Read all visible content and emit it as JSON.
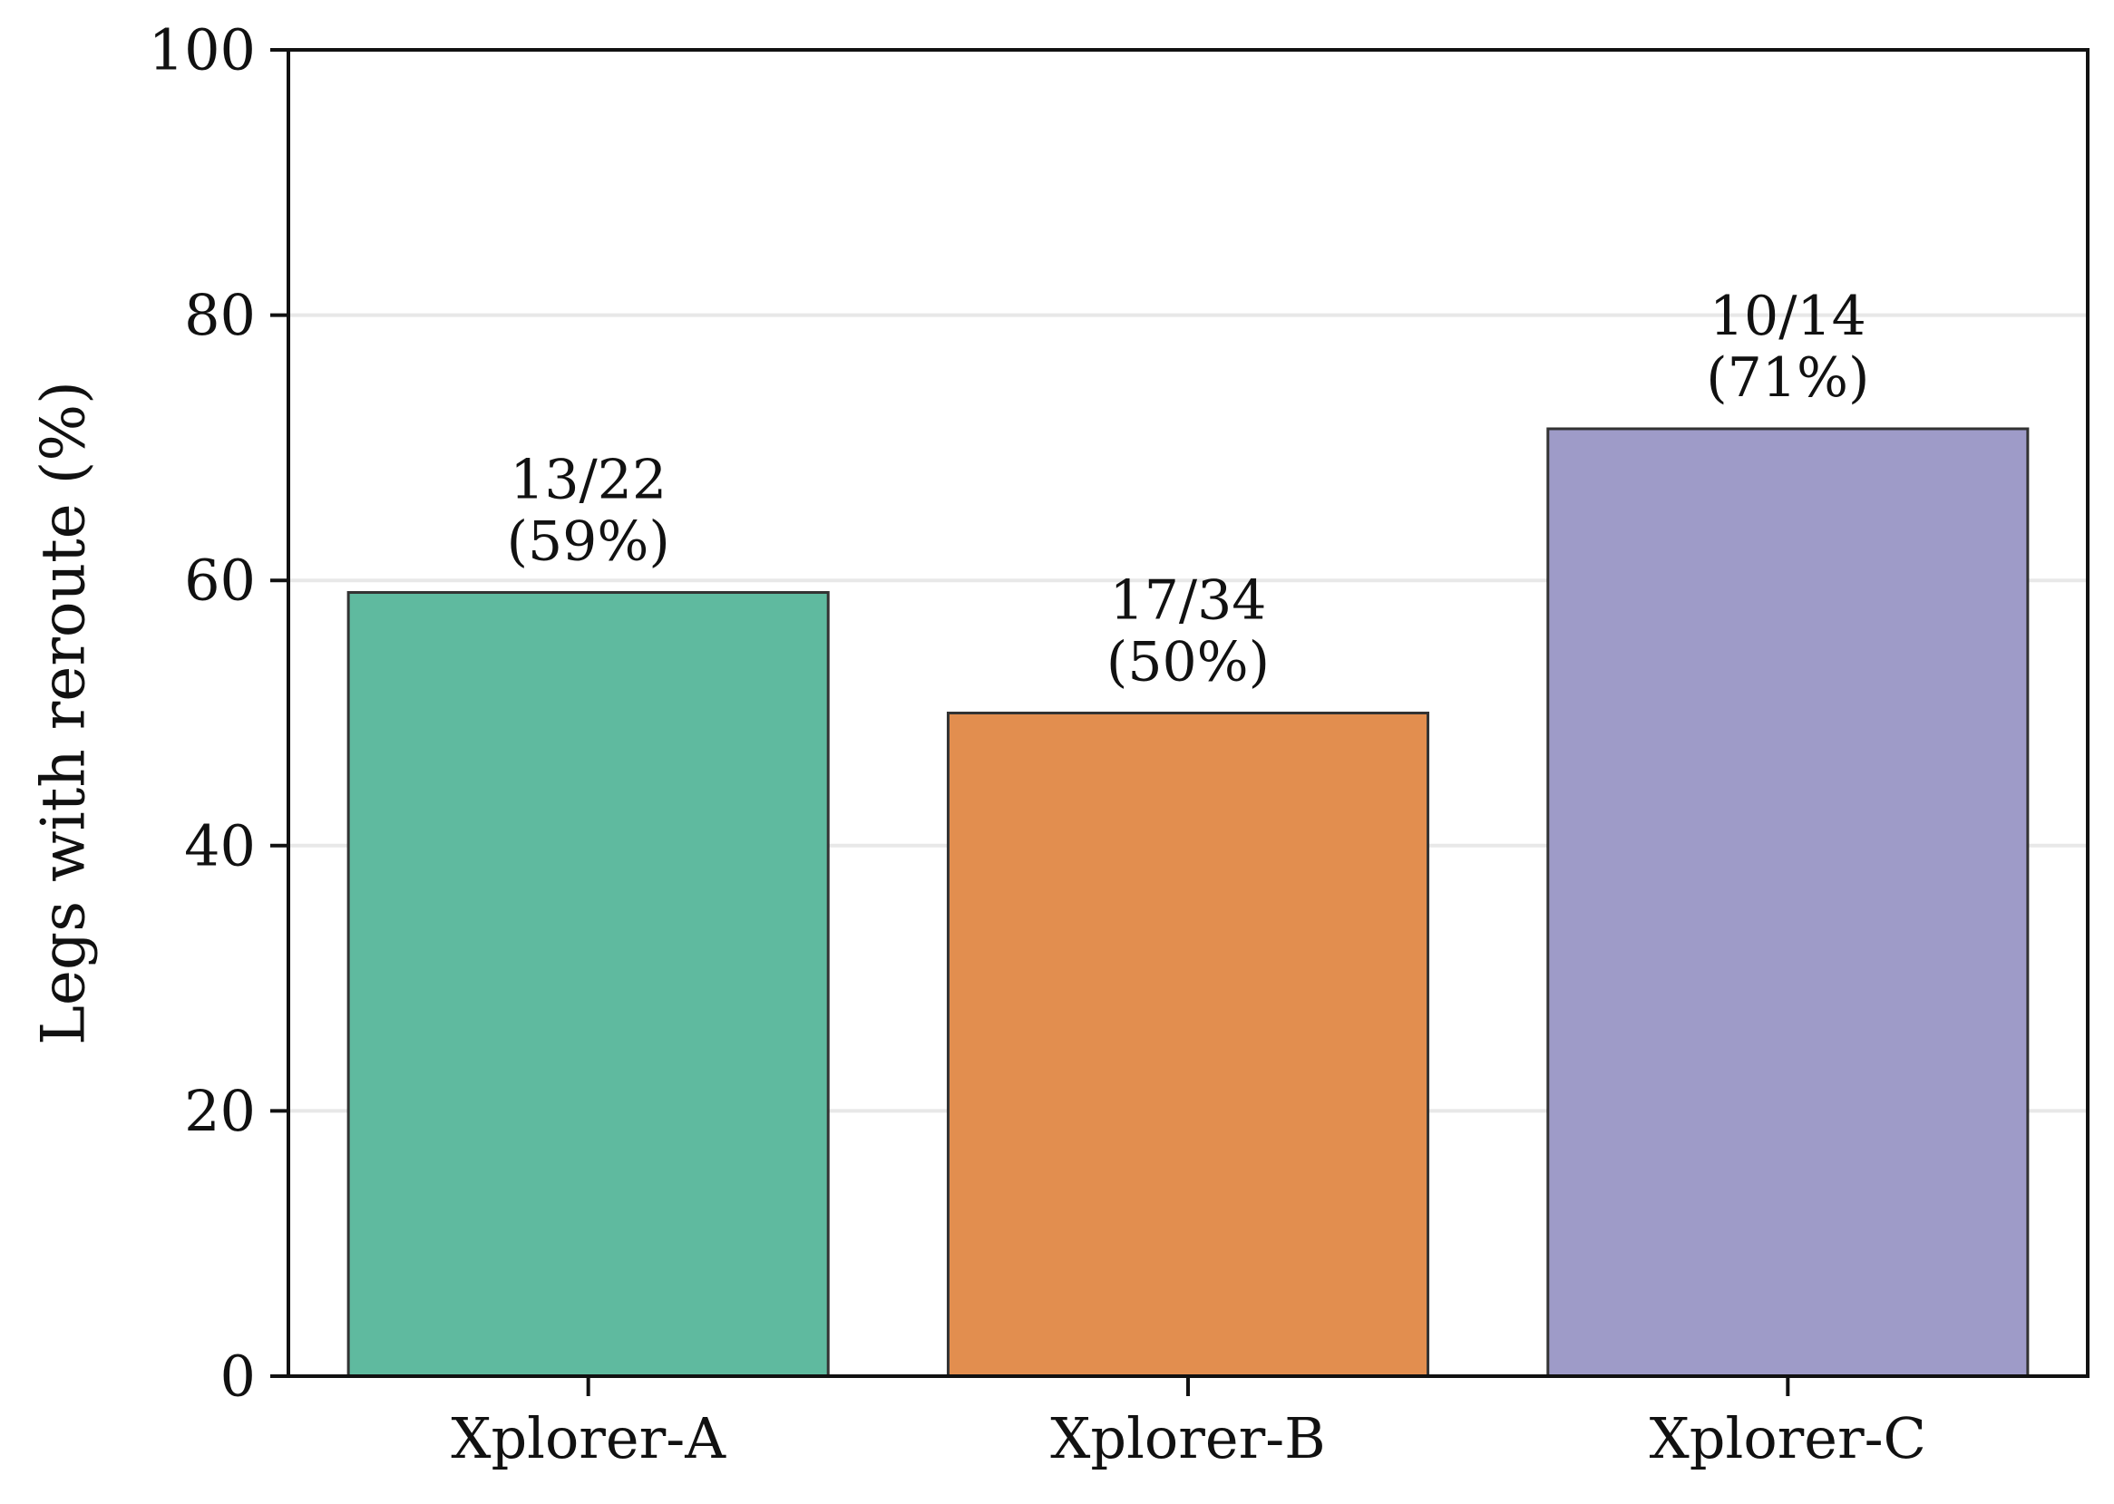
{
  "chart_data": {
    "type": "bar",
    "title": "",
    "xlabel": "",
    "ylabel": "Legs with reroute (%)",
    "ylim": [
      0,
      100
    ],
    "yticks": [
      0,
      20,
      40,
      60,
      80,
      100
    ],
    "grid": "horizontal",
    "categories": [
      "Xplorer-A",
      "Xplorer-B",
      "Xplorer-C"
    ],
    "values": [
      59.09,
      50.0,
      71.43
    ],
    "bar_labels": [
      [
        "13/22",
        "(59%)"
      ],
      [
        "17/34",
        "(50%)"
      ],
      [
        "10/14",
        "(71%)"
      ]
    ],
    "colors": [
      "#5fba9f",
      "#e28e4f",
      "#9e9bc8"
    ]
  }
}
